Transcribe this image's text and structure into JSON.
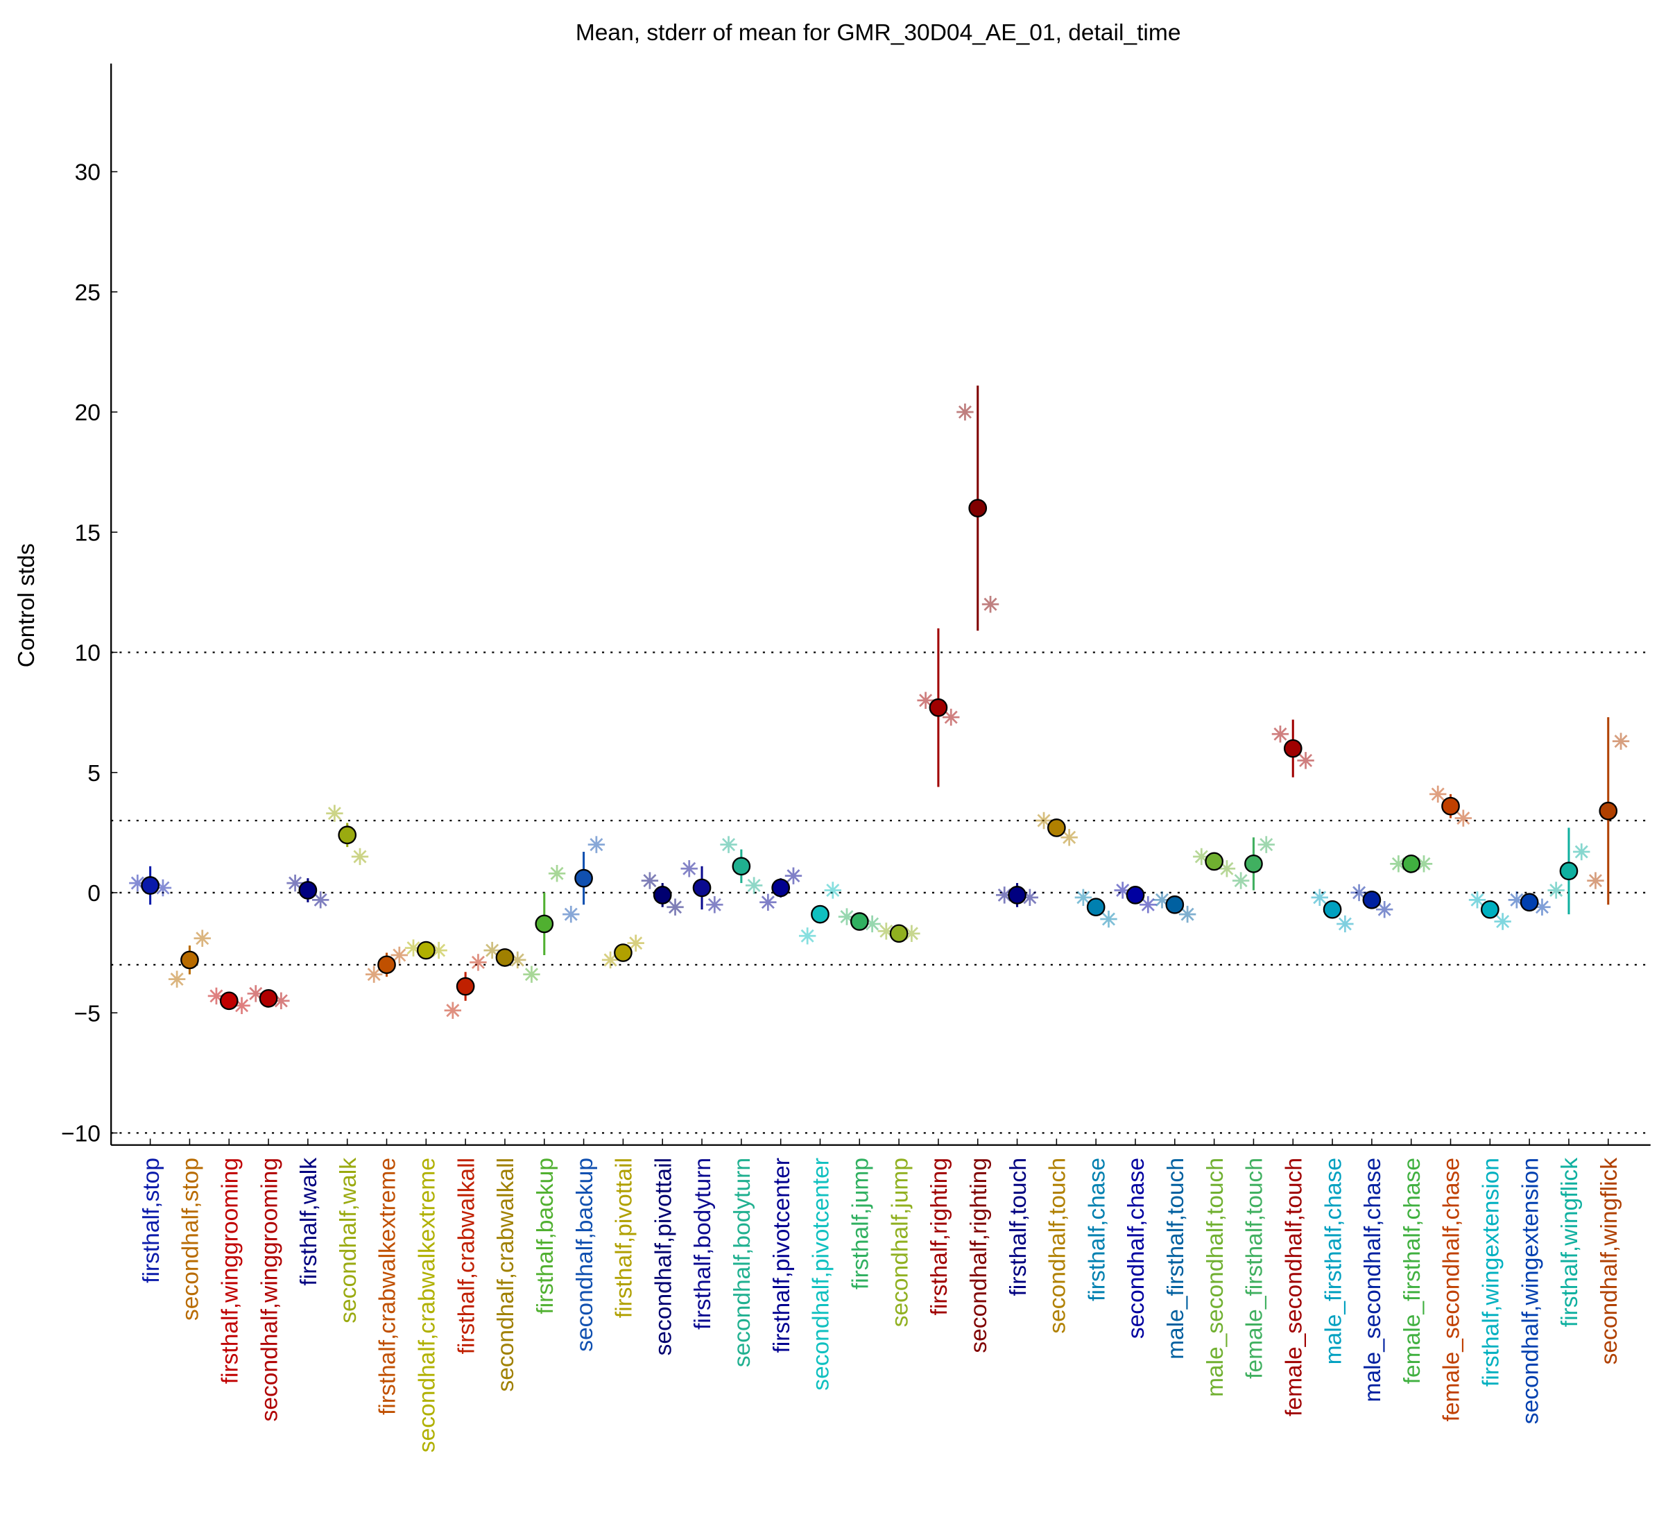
{
  "chart_data": {
    "type": "errorbar",
    "title": "Mean, stderr of mean for GMR_30D04_AE_01, detail_time",
    "y_label": "Control stds",
    "ylim": [
      -10.5,
      34.5
    ],
    "yticks": [
      {
        "value": -10,
        "label": "−10"
      },
      {
        "value": -5,
        "label": "−5"
      },
      0,
      5,
      10,
      15,
      20,
      25,
      30
    ],
    "hlines": [
      -10,
      -3,
      0,
      3,
      10
    ],
    "categories": [
      "firsthalf,stop",
      "secondhalf,stop",
      "firsthalf,winggrooming",
      "secondhalf,winggrooming",
      "firsthalf,walk",
      "secondhalf,walk",
      "firsthalf,crabwalkextreme",
      "secondhalf,crabwalkextreme",
      "firsthalf,crabwalkall",
      "secondhalf,crabwalkall",
      "firsthalf,backup",
      "secondhalf,backup",
      "firsthalf,pivottail",
      "secondhalf,pivottail",
      "firsthalf,bodyturn",
      "secondhalf,bodyturn",
      "firsthalf,pivotcenter",
      "secondhalf,pivotcenter",
      "firsthalf,jump",
      "secondhalf,jump",
      "firsthalf,righting",
      "secondhalf,righting",
      "firsthalf,touch",
      "secondhalf,touch",
      "firsthalf,chase",
      "secondhalf,chase",
      "male_firsthalf,touch",
      "male_secondhalf,touch",
      "female_firsthalf,touch",
      "female_secondhalf,touch",
      "male_firsthalf,chase",
      "male_secondhalf,chase",
      "female_firsthalf,chase",
      "female_secondhalf,chase",
      "firsthalf,wingextension",
      "secondhalf,wingextension",
      "firsthalf,wingflick",
      "secondhalf,wingflick"
    ],
    "colors": [
      "#0a1aaa",
      "#b86b00",
      "#c00000",
      "#b00000",
      "#000080",
      "#9aaa10",
      "#c05000",
      "#b0b000",
      "#c02000",
      "#a08000",
      "#50b030",
      "#1050b0",
      "#b0a000",
      "#000070",
      "#0a0a90",
      "#20b090",
      "#000090",
      "#10c0c0",
      "#30b060",
      "#90b020",
      "#a00000",
      "#800000",
      "#000080",
      "#b08000",
      "#0080b0",
      "#0000a0",
      "#0060a0",
      "#70b030",
      "#40b060",
      "#a00000",
      "#00a0c0",
      "#0020a0",
      "#40b040",
      "#c04000",
      "#00b0c0",
      "#0040b0",
      "#10b0a0",
      "#b04000"
    ],
    "values": [
      0.3,
      -2.8,
      -4.5,
      -4.4,
      0.1,
      2.4,
      -3.0,
      -2.4,
      -3.9,
      -2.7,
      -1.3,
      0.6,
      -2.5,
      -0.1,
      0.2,
      1.1,
      0.2,
      -0.9,
      -1.2,
      -1.7,
      7.7,
      16.0,
      -0.1,
      2.7,
      -0.6,
      -0.1,
      -0.5,
      1.3,
      1.2,
      6.0,
      -0.7,
      -0.3,
      1.2,
      3.6,
      -0.7,
      -0.4,
      0.9,
      3.4
    ],
    "errors": [
      0.8,
      0.6,
      0.2,
      0.2,
      0.5,
      0.5,
      0.5,
      0.3,
      0.6,
      0.2,
      1.3,
      1.1,
      0.3,
      0.5,
      0.9,
      0.7,
      0.4,
      0.2,
      0.2,
      0.2,
      3.3,
      5.1,
      0.5,
      0.3,
      0.2,
      0.2,
      0.3,
      0.2,
      1.1,
      1.2,
      0.2,
      0.2,
      0.1,
      0.5,
      0.1,
      0.1,
      1.8,
      3.9
    ],
    "left_values": [
      0.4,
      -3.6,
      -4.3,
      -4.2,
      0.4,
      3.3,
      -3.4,
      -2.3,
      -4.9,
      -2.4,
      -3.4,
      -0.9,
      -2.8,
      0.5,
      1.0,
      2.0,
      -0.4,
      -1.8,
      -1.0,
      -1.6,
      8.0,
      20.0,
      -0.1,
      3.0,
      -0.2,
      0.1,
      -0.3,
      1.5,
      0.5,
      6.6,
      -0.2,
      0.0,
      1.2,
      4.1,
      -0.3,
      -0.3,
      0.1,
      0.5
    ],
    "right_values": [
      0.2,
      -1.9,
      -4.7,
      -4.5,
      -0.3,
      1.5,
      -2.6,
      -2.4,
      -2.9,
      -2.8,
      0.8,
      2.0,
      -2.1,
      -0.6,
      -0.5,
      0.3,
      0.7,
      0.1,
      -1.3,
      -1.7,
      7.3,
      12.0,
      -0.2,
      2.3,
      -1.1,
      -0.5,
      -0.9,
      1.0,
      2.0,
      5.5,
      -1.3,
      -0.7,
      1.2,
      3.1,
      -1.2,
      -0.6,
      1.7,
      6.3
    ]
  }
}
